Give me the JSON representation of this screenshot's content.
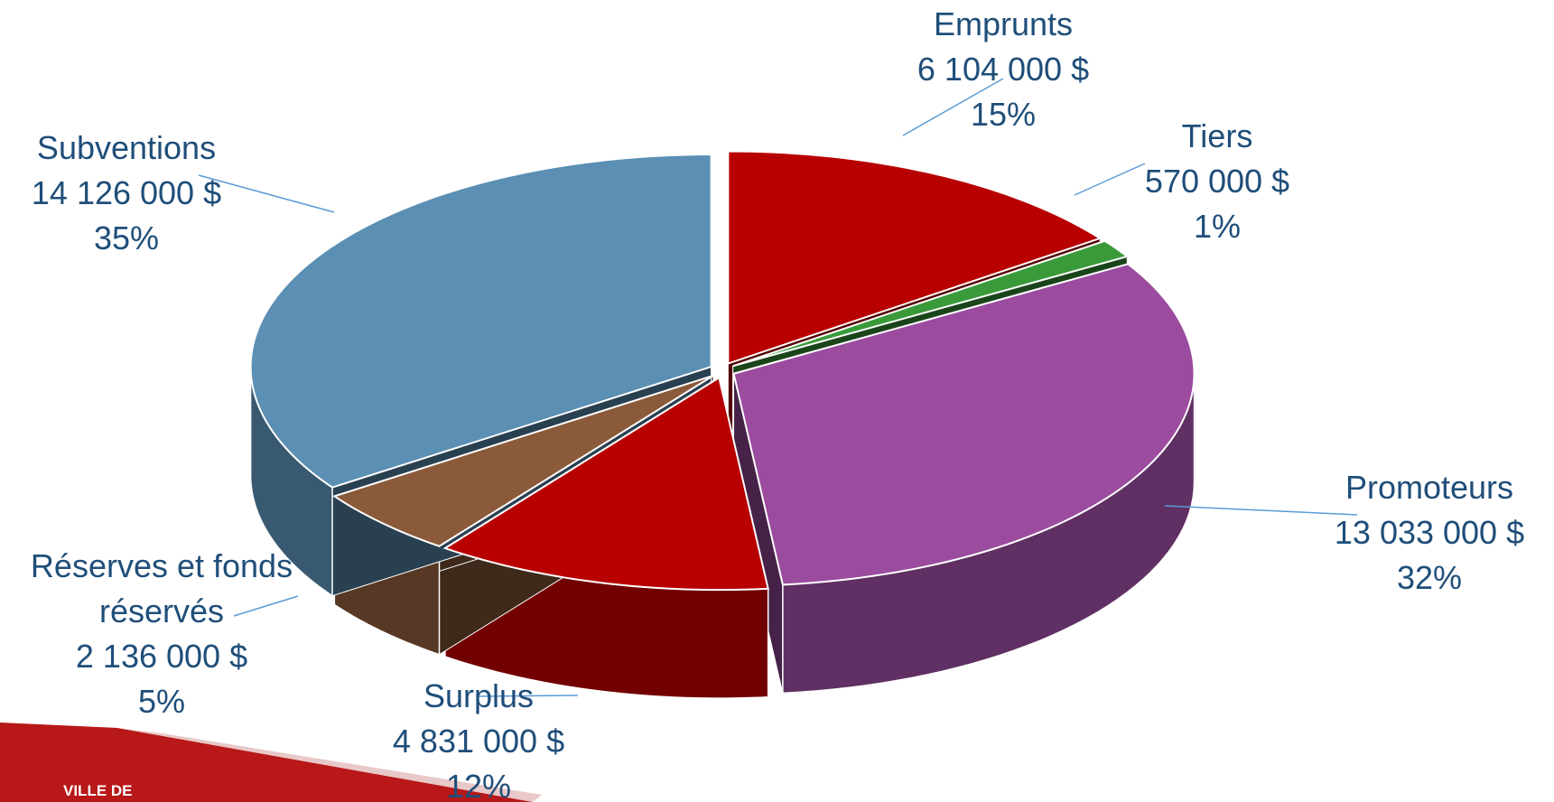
{
  "chart_data": {
    "type": "pie",
    "categories": [
      "Emprunts",
      "Tiers",
      "Promoteurs",
      "Surplus",
      "Réserves et fonds réservés",
      "Subventions"
    ],
    "values": [
      6104000,
      570000,
      13033000,
      4831000,
      2136000,
      14126000
    ],
    "value_labels": [
      "6 104 000 $",
      "570 000 $",
      "13 033 000 $",
      "4 831 000 $",
      "2 136 000 $",
      "14 126 000 $"
    ],
    "percent_labels": [
      "15%",
      "1%",
      "32%",
      "12%",
      "5%",
      "35%"
    ],
    "colors": [
      "#b80000",
      "#3a9a3a",
      "#9b4c9f",
      "#b80000",
      "#8a5a3a",
      "#5b8fb3"
    ]
  },
  "logo_text": "VILLE DE"
}
